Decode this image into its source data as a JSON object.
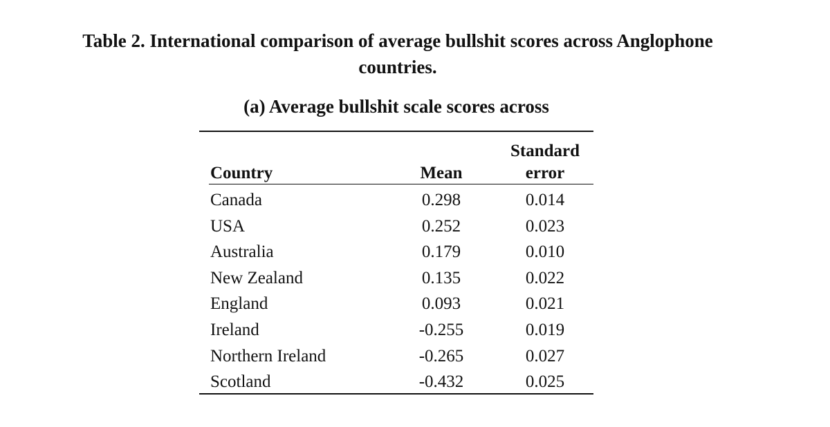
{
  "title": {
    "line1": "Table 2. International comparison of average bullshit scores across Anglophone",
    "line2": "countries."
  },
  "subtitle": "(a) Average bullshit scale scores across",
  "table": {
    "headers": {
      "country": "Country",
      "mean": "Mean",
      "se_line1": "Standard",
      "se_line2": "error"
    },
    "rows": [
      {
        "country": "Canada",
        "mean": "0.298",
        "se": "0.014"
      },
      {
        "country": "USA",
        "mean": "0.252",
        "se": "0.023"
      },
      {
        "country": "Australia",
        "mean": "0.179",
        "se": "0.010"
      },
      {
        "country": "New Zealand",
        "mean": "0.135",
        "se": "0.022"
      },
      {
        "country": "England",
        "mean": "0.093",
        "se": "0.021"
      },
      {
        "country": "Ireland",
        "mean": "-0.255",
        "se": "0.019"
      },
      {
        "country": "Northern Ireland",
        "mean": "-0.265",
        "se": "0.027"
      },
      {
        "country": "Scotland",
        "mean": "-0.432",
        "se": "0.025"
      }
    ]
  }
}
